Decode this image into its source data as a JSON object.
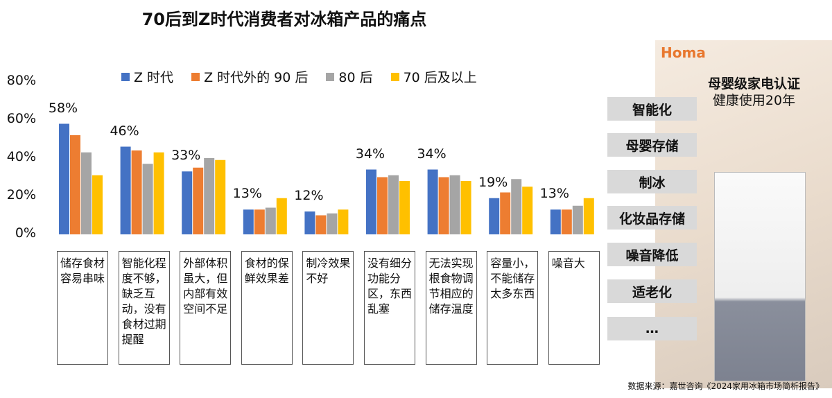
{
  "chart_data": {
    "type": "bar",
    "title": "70后到Z时代消费者对冰箱产品的痛点",
    "categories": [
      "储存食材容易串味",
      "智能化程度不够，缺乏互动，没有食材过期提醒",
      "外部体积虽大，但内部有效空间不足",
      "食材的保鲜效果差",
      "制冷效果不好",
      "没有细分功能分区，东西乱塞",
      "无法实现根食物调节相应的储存温度",
      "容量小，不能储存太多东西",
      "噪音大"
    ],
    "series": [
      {
        "name": "Z 时代",
        "color": "#4472c4",
        "values": [
          58,
          46,
          33,
          13,
          12,
          34,
          34,
          19,
          13
        ]
      },
      {
        "name": "Z 时代外的 90 后",
        "color": "#ed7d31",
        "values": [
          52,
          44,
          35,
          13,
          10,
          30,
          30,
          22,
          13
        ]
      },
      {
        "name": "80 后",
        "color": "#a5a5a5",
        "values": [
          43,
          37,
          40,
          14,
          11,
          31,
          31,
          29,
          15
        ]
      },
      {
        "name": "70 后及以上",
        "color": "#ffc000",
        "values": [
          31,
          43,
          39,
          19,
          13,
          28,
          28,
          25,
          19
        ]
      }
    ],
    "data_labels": [
      "58%",
      "46%",
      "33%",
      "13%",
      "12%",
      "34%",
      "34%",
      "19%",
      "13%"
    ],
    "yticks": [
      "0%",
      "20%",
      "40%",
      "60%",
      "80%"
    ],
    "ylim": [
      0,
      80
    ],
    "grid": false,
    "legend": "top"
  },
  "side_tags": [
    "智能化",
    "母婴存储",
    "制冰",
    "化妆品存储",
    "噪音降低",
    "适老化",
    "…"
  ],
  "photo": {
    "brand": "Homa",
    "line1": "母婴级家电认证",
    "line2": "健康使用20年"
  },
  "source": "数据来源：嘉世咨询《2024家用冰箱市场简析报告》"
}
